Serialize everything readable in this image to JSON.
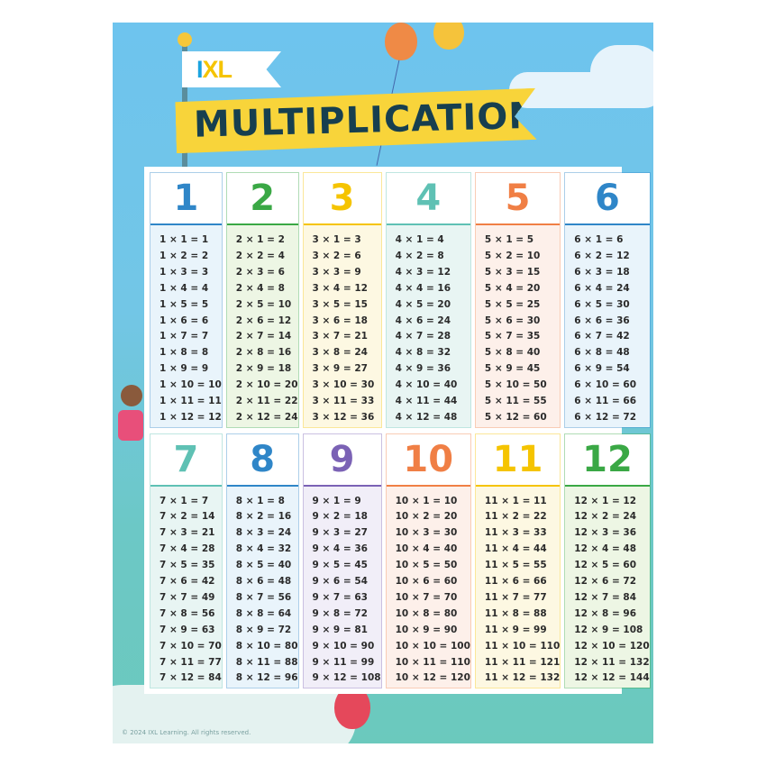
{
  "logo": {
    "text": "IXL",
    "colors": [
      "#1ba3e0",
      "#f5c400"
    ]
  },
  "title": "MULTIPLICATION",
  "copyright": "© 2024 IXL Learning. All rights reserved.",
  "tables": [
    {
      "n": "1",
      "color": "#2f86c8",
      "tint": "#e9f4fb",
      "rows": [
        "1 × 1 = 1",
        "1 × 2 = 2",
        "1 × 3 = 3",
        "1 × 4 = 4",
        "1 × 5 = 5",
        "1 × 6 = 6",
        "1 × 7 = 7",
        "1 × 8 = 8",
        "1 × 9 = 9",
        "1 × 10 = 10",
        "1 × 11 = 11",
        "1 × 12 = 12"
      ]
    },
    {
      "n": "2",
      "color": "#3aa845",
      "tint": "#edf6e4",
      "rows": [
        "2 × 1 = 2",
        "2 × 2 = 4",
        "2 × 3 = 6",
        "2 × 4 = 8",
        "2 × 5 = 10",
        "2 × 6 = 12",
        "2 × 7 = 14",
        "2 × 8 = 16",
        "2 × 9 = 18",
        "2 × 10 = 20",
        "2 × 11 = 22",
        "2 × 12 = 24"
      ]
    },
    {
      "n": "3",
      "color": "#f5c400",
      "tint": "#fdf8e2",
      "rows": [
        "3 × 1 = 3",
        "3 × 2 = 6",
        "3 × 3 = 9",
        "3 × 4 = 12",
        "3 × 5 = 15",
        "3 × 6 = 18",
        "3 × 7 = 21",
        "3 × 8 = 24",
        "3 × 9 = 27",
        "3 × 10 = 30",
        "3 × 11 = 33",
        "3 × 12 = 36"
      ]
    },
    {
      "n": "4",
      "color": "#5fc1b4",
      "tint": "#e8f5f3",
      "rows": [
        "4 × 1 = 4",
        "4 × 2 = 8",
        "4 × 3 = 12",
        "4 × 4 = 16",
        "4 × 5 = 20",
        "4 × 6 = 24",
        "4 × 7 = 28",
        "4 × 8 = 32",
        "4 × 9 = 36",
        "4 × 10 = 40",
        "4 × 11 = 44",
        "4 × 12 = 48"
      ]
    },
    {
      "n": "5",
      "color": "#f07f45",
      "tint": "#fdf0ea",
      "rows": [
        "5 × 1 = 5",
        "5 × 2 = 10",
        "5 × 3 = 15",
        "5 × 4 = 20",
        "5 × 5 = 25",
        "5 × 6 = 30",
        "5 × 7 = 35",
        "5 × 8 = 40",
        "5 × 9 = 45",
        "5 × 10 = 50",
        "5 × 11 = 55",
        "5 × 12 = 60"
      ]
    },
    {
      "n": "6",
      "color": "#2f86c8",
      "tint": "#e9f4fb",
      "rows": [
        "6 × 1 = 6",
        "6 × 2 = 12",
        "6 × 3 = 18",
        "6 × 4 = 24",
        "6 × 5 = 30",
        "6 × 6 = 36",
        "6 × 7 = 42",
        "6 × 8 = 48",
        "6 × 9 = 54",
        "6 × 10 = 60",
        "6 × 11 = 66",
        "6 × 12 = 72"
      ]
    },
    {
      "n": "7",
      "color": "#5fc1b4",
      "tint": "#e8f5f3",
      "rows": [
        "7 × 1 = 7",
        "7 × 2 = 14",
        "7 × 3 = 21",
        "7 × 4 = 28",
        "7 × 5 = 35",
        "7 × 6 = 42",
        "7 × 7 = 49",
        "7 × 8 = 56",
        "7 × 9 = 63",
        "7 × 10 = 70",
        "7 × 11 = 77",
        "7 × 12 = 84"
      ]
    },
    {
      "n": "8",
      "color": "#2f86c8",
      "tint": "#e9f4fb",
      "rows": [
        "8 × 1 = 8",
        "8 × 2 = 16",
        "8 × 3 = 24",
        "8 × 4 = 32",
        "8 × 5 = 40",
        "8 × 6 = 48",
        "8 × 7 = 56",
        "8 × 8 = 64",
        "8 × 9 = 72",
        "8 × 10 = 80",
        "8 × 11 = 88",
        "8 × 12 = 96"
      ]
    },
    {
      "n": "9",
      "color": "#7b62b5",
      "tint": "#f1eef8",
      "rows": [
        "9 × 1 = 9",
        "9 × 2 = 18",
        "9 × 3 = 27",
        "9 × 4 = 36",
        "9 × 5 = 45",
        "9 × 6 = 54",
        "9 × 7 = 63",
        "9 × 8 = 72",
        "9 × 9 = 81",
        "9 × 10 = 90",
        "9 × 11 = 99",
        "9 × 12 = 108"
      ]
    },
    {
      "n": "10",
      "color": "#f07f45",
      "tint": "#fdf0ea",
      "rows": [
        "10 × 1 = 10",
        "10 × 2 = 20",
        "10 × 3 = 30",
        "10 × 4 = 40",
        "10 × 5 = 50",
        "10 × 6 = 60",
        "10 × 7 = 70",
        "10 × 8 = 80",
        "10 × 9 = 90",
        "10 × 10 = 100",
        "10 × 11 = 110",
        "10 × 12 = 120"
      ]
    },
    {
      "n": "11",
      "color": "#f5c400",
      "tint": "#fdf8e2",
      "rows": [
        "11 × 1 = 11",
        "11 × 2 = 22",
        "11 × 3 = 33",
        "11 × 4 = 44",
        "11 × 5 = 55",
        "11 × 6 = 66",
        "11 × 7 = 77",
        "11 × 8 = 88",
        "11 × 9 = 99",
        "11 × 10 = 110",
        "11 × 11 = 121",
        "11 × 12 = 132"
      ]
    },
    {
      "n": "12",
      "color": "#3aa845",
      "tint": "#edf6e4",
      "rows": [
        "12 × 1 = 12",
        "12 × 2 = 24",
        "12 × 3 = 36",
        "12 × 4 = 48",
        "12 × 5 = 60",
        "12 × 6 = 72",
        "12 × 7 = 84",
        "12 × 8 = 96",
        "12 × 9 = 108",
        "12 × 10 = 120",
        "12 × 11 = 132",
        "12 × 12 = 144"
      ]
    }
  ]
}
